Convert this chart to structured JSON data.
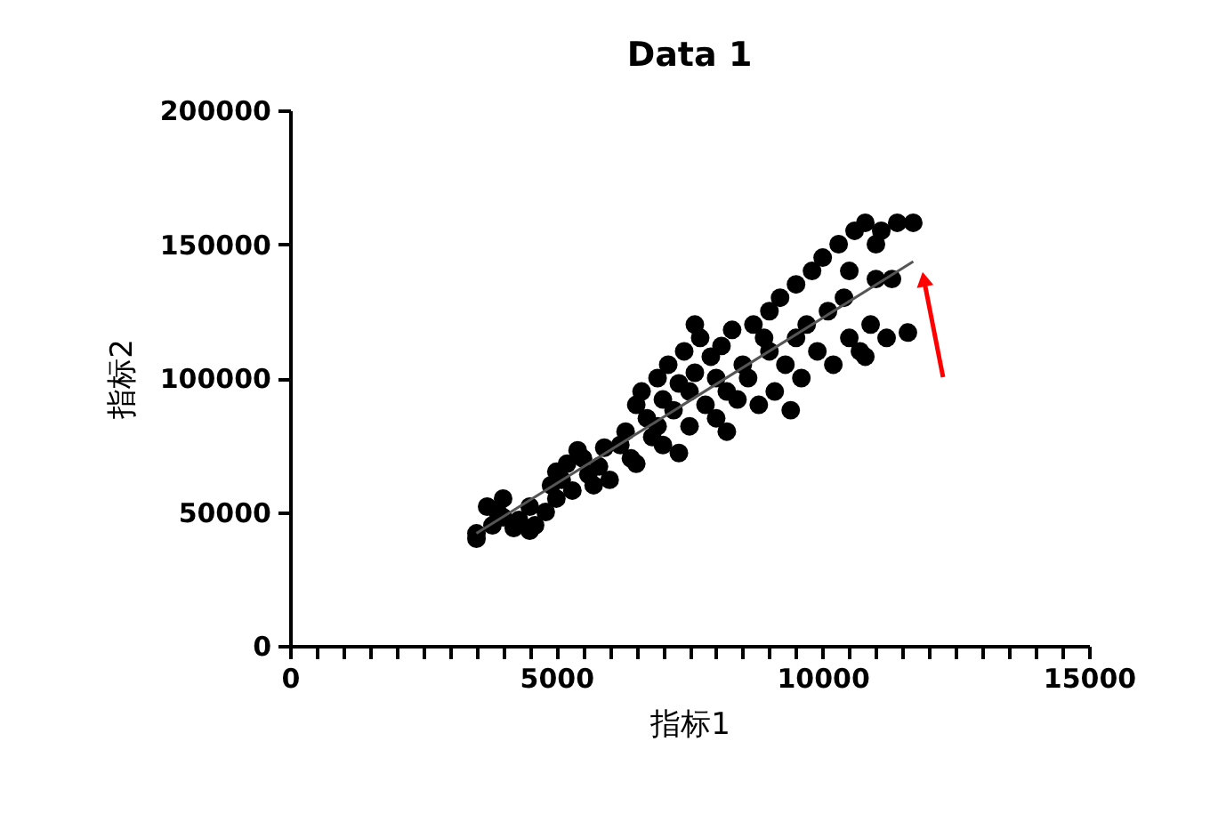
{
  "chart_data": {
    "type": "scatter",
    "title": "Data 1",
    "xlabel": "指标1",
    "ylabel": "指标2",
    "xlim": [
      0,
      15000
    ],
    "ylim": [
      0,
      200000
    ],
    "xticks": [
      0,
      {
        "value": 500,
        "label": null
      },
      {
        "value": 1000,
        "label": null
      },
      {
        "value": 1500,
        "label": null
      },
      {
        "value": 2000,
        "label": null
      },
      {
        "value": 2500,
        "label": null
      },
      {
        "value": 3000,
        "label": null
      },
      {
        "value": 3500,
        "label": null
      },
      {
        "value": 4000,
        "label": null
      },
      {
        "value": 4500,
        "label": null
      },
      5000,
      {
        "value": 5500,
        "label": null
      },
      {
        "value": 6000,
        "label": null
      },
      {
        "value": 6500,
        "label": null
      },
      {
        "value": 7000,
        "label": null
      },
      {
        "value": 7500,
        "label": null
      },
      {
        "value": 8000,
        "label": null
      },
      {
        "value": 8500,
        "label": null
      },
      {
        "value": 9000,
        "label": null
      },
      {
        "value": 9500,
        "label": null
      },
      10000,
      {
        "value": 10500,
        "label": null
      },
      {
        "value": 11000,
        "label": null
      },
      {
        "value": 11500,
        "label": null
      },
      {
        "value": 12000,
        "label": null
      },
      {
        "value": 12500,
        "label": null
      },
      {
        "value": 13000,
        "label": null
      },
      {
        "value": 13500,
        "label": null
      },
      {
        "value": 14000,
        "label": null
      },
      {
        "value": 14500,
        "label": null
      },
      15000
    ],
    "yticks": [
      0,
      50000,
      100000,
      150000,
      200000
    ],
    "grid": false,
    "marker": "circle",
    "series": [
      {
        "color": "#000000",
        "x": [
          3500,
          3500,
          3800,
          3900,
          4000,
          4200,
          4300,
          4500,
          4600,
          4500,
          4000,
          3700,
          4900,
          5000,
          5100,
          5200,
          5300,
          5500,
          5600,
          5700,
          5000,
          5400,
          5800,
          6000,
          4800,
          6200,
          6300,
          6400,
          6500,
          6600,
          6700,
          6800,
          6900,
          7000,
          7000,
          6500,
          7100,
          7200,
          7300,
          7400,
          7500,
          7500,
          7600,
          7700,
          7800,
          7900,
          8000,
          8000,
          8100,
          8200,
          8300,
          8400,
          8500,
          8600,
          8700,
          8800,
          9000,
          9000,
          9100,
          9200,
          9300,
          9500,
          9500,
          9600,
          9700,
          9800,
          9900,
          10000,
          10100,
          10200,
          10300,
          10400,
          10500,
          10600,
          10700,
          10800,
          10900,
          11000,
          11000,
          11100,
          11200,
          11300,
          11400,
          11600,
          11700,
          6900,
          7300,
          5900,
          8900,
          9400,
          10500,
          10800,
          7600,
          8200
        ],
        "values": [
          40000,
          42000,
          45000,
          50000,
          48000,
          44000,
          47000,
          52000,
          45000,
          43000,
          55000,
          52000,
          60000,
          65000,
          62000,
          68000,
          58000,
          70000,
          64000,
          60000,
          55000,
          73000,
          67000,
          62000,
          50000,
          75000,
          80000,
          70000,
          90000,
          95000,
          85000,
          78000,
          100000,
          92000,
          75000,
          68000,
          105000,
          88000,
          98000,
          110000,
          82000,
          95000,
          102000,
          115000,
          90000,
          108000,
          85000,
          100000,
          112000,
          95000,
          118000,
          92000,
          105000,
          100000,
          120000,
          90000,
          110000,
          125000,
          95000,
          130000,
          105000,
          115000,
          135000,
          100000,
          120000,
          140000,
          110000,
          145000,
          125000,
          105000,
          150000,
          130000,
          115000,
          155000,
          110000,
          158000,
          120000,
          137000,
          150000,
          155000,
          115000,
          137000,
          158000,
          117000,
          158000,
          82000,
          72000,
          74000,
          115000,
          88000,
          140000,
          108000,
          120000,
          80000
        ]
      },
      {
        "color": "#555555",
        "type": "line",
        "marker": "none",
        "x": [
          3500,
          11700
        ],
        "values": [
          42000,
          143500
        ]
      }
    ]
  }
}
